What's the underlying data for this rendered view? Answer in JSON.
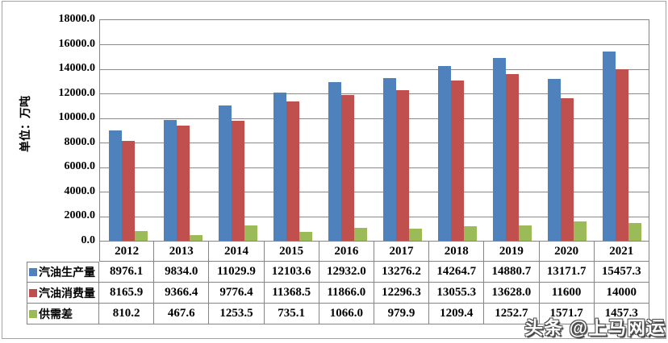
{
  "chart_data": {
    "type": "bar",
    "title": "",
    "ylabel": "单位：万吨",
    "xlabel": "",
    "categories": [
      "2012",
      "2013",
      "2014",
      "2015",
      "2016",
      "2017",
      "2018",
      "2019",
      "2020",
      "2021"
    ],
    "series": [
      {
        "name": "汽油生产量",
        "color": "#4F81BD",
        "values": [
          8976.1,
          9834.0,
          11029.9,
          12103.6,
          12932.0,
          13276.2,
          14264.7,
          14880.7,
          13171.7,
          15457.3
        ],
        "labels": [
          "8976.1",
          "9834.0",
          "11029.9",
          "12103.6",
          "12932.0",
          "13276.2",
          "14264.7",
          "14880.7",
          "13171.7",
          "15457.3"
        ]
      },
      {
        "name": "汽油消费量",
        "color": "#C0504D",
        "values": [
          8165.9,
          9366.4,
          9776.4,
          11368.5,
          11866.0,
          12296.3,
          13055.3,
          13628.0,
          11600,
          14000
        ],
        "labels": [
          "8165.9",
          "9366.4",
          "9776.4",
          "11368.5",
          "11866.0",
          "12296.3",
          "13055.3",
          "13628.0",
          "11600",
          "14000"
        ]
      },
      {
        "name": "供需差",
        "color": "#9BBB59",
        "values": [
          810.2,
          467.6,
          1253.5,
          735.1,
          1066.0,
          979.9,
          1209.4,
          1252.7,
          1571.7,
          1457.3
        ],
        "labels": [
          "810.2",
          "467.6",
          "1253.5",
          "735.1",
          "1066.0",
          "979.9",
          "1209.4",
          "1252.7",
          "1571.7",
          "1457.3"
        ]
      }
    ],
    "ylim": [
      0,
      18000
    ],
    "ytick_step": 2000,
    "ytick_labels": [
      "18000.0",
      "16000.0",
      "14000.0",
      "12000.0",
      "10000.0",
      "8000.0",
      "6000.0",
      "4000.0",
      "2000.0",
      "0.0"
    ],
    "grid": true,
    "legend_position": "data-table-left",
    "gridline_color": "#8a8a8a",
    "border_color": "#848484"
  },
  "watermark": "头条 @上马网运"
}
